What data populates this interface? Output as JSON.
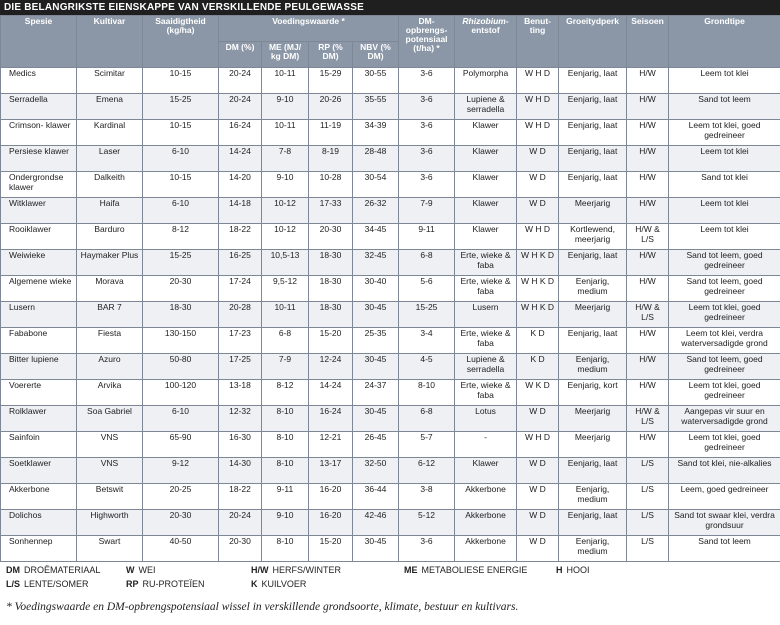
{
  "title": "DIE BELANGRIKSTE EIENSKAPPE VAN VERSKILLENDE PEULGEWASSE",
  "headers": {
    "spesie": "Spesie",
    "kultivar": "Kultivar",
    "saaidigtheid": "Saaidigtheid (kg/ha)",
    "voedingswaarde": "Voedingswaarde *",
    "dm": "DM (%)",
    "me": "ME (MJ/ kg DM)",
    "rp": "RP (% DM)",
    "nbv": "NBV (% DM)",
    "dm_potensiaal": "DM- opbrengs- potensiaal (t/ha) *",
    "rhizobium": "Rhizobium-",
    "rhizobium2": "entstof",
    "benutting": "Benut- ting",
    "groeityd": "Groeitydperk",
    "seisoen": "Seisoen",
    "grondtipe": "Grondtipe"
  },
  "rows": [
    {
      "spesie": "Medics",
      "kultivar": "Scimitar",
      "saai": "10-15",
      "dm": "20-24",
      "me": "10-11",
      "rp": "15-29",
      "nbv": "30-55",
      "pot": "3-6",
      "rhiz": "Polymorpha",
      "benut": "W H D",
      "groei": "Eenjarig, laat",
      "seis": "H/W",
      "grond": "Leem tot klei"
    },
    {
      "spesie": "Serradella",
      "kultivar": "Emena",
      "saai": "15-25",
      "dm": "20-24",
      "me": "9-10",
      "rp": "20-26",
      "nbv": "35-55",
      "pot": "3-6",
      "rhiz": "Lupiene & serradella",
      "benut": "W H D",
      "groei": "Eenjarig, laat",
      "seis": "H/W",
      "grond": "Sand tot leem"
    },
    {
      "spesie": "Crimson- klawer",
      "kultivar": "Kardinal",
      "saai": "10-15",
      "dm": "16-24",
      "me": "10-11",
      "rp": "11-19",
      "nbv": "34-39",
      "pot": "3-6",
      "rhiz": "Klawer",
      "benut": "W H D",
      "groei": "Eenjarig, laat",
      "seis": "H/W",
      "grond": "Leem tot klei, goed gedreineer"
    },
    {
      "spesie": "Persiese klawer",
      "kultivar": "Laser",
      "saai": "6-10",
      "dm": "14-24",
      "me": "7-8",
      "rp": "8-19",
      "nbv": "28-48",
      "pot": "3-6",
      "rhiz": "Klawer",
      "benut": "W D",
      "groei": "Eenjarig, laat",
      "seis": "H/W",
      "grond": "Leem tot klei"
    },
    {
      "spesie": "Ondergrondse klawer",
      "kultivar": "Dalkeith",
      "saai": "10-15",
      "dm": "14-20",
      "me": "9-10",
      "rp": "10-28",
      "nbv": "30-54",
      "pot": "3-6",
      "rhiz": "Klawer",
      "benut": "W D",
      "groei": "Eenjarig, laat",
      "seis": "H/W",
      "grond": "Sand tot klei"
    },
    {
      "spesie": "Witklawer",
      "kultivar": "Haifa",
      "saai": "6-10",
      "dm": "14-18",
      "me": "10-12",
      "rp": "17-33",
      "nbv": "26-32",
      "pot": "7-9",
      "rhiz": "Klawer",
      "benut": "W D",
      "groei": "Meerjarig",
      "seis": "H/W",
      "grond": "Leem tot klei"
    },
    {
      "spesie": "Rooiklawer",
      "kultivar": "Barduro",
      "saai": "8-12",
      "dm": "18-22",
      "me": "10-12",
      "rp": "20-30",
      "nbv": "34-45",
      "pot": "9-11",
      "rhiz": "Klawer",
      "benut": "W H D",
      "groei": "Kortlewend, meerjarig",
      "seis": "H/W & L/S",
      "grond": "Leem tot klei"
    },
    {
      "spesie": "Weiwieke",
      "kultivar": "Haymaker Plus",
      "saai": "15-25",
      "dm": "16-25",
      "me": "10,5-13",
      "rp": "18-30",
      "nbv": "32-45",
      "pot": "6-8",
      "rhiz": "Erte, wieke & faba",
      "benut": "W H K D",
      "groei": "Eenjarig, laat",
      "seis": "H/W",
      "grond": "Sand tot leem, goed gedreineer"
    },
    {
      "spesie": "Algemene wieke",
      "kultivar": "Morava",
      "saai": "20-30",
      "dm": "17-24",
      "me": "9,5-12",
      "rp": "18-30",
      "nbv": "30-40",
      "pot": "5-6",
      "rhiz": "Erte, wieke & faba",
      "benut": "W H K D",
      "groei": "Eenjarig, medium",
      "seis": "H/W",
      "grond": "Sand tot leem, goed gedreineer"
    },
    {
      "spesie": "Lusern",
      "kultivar": "BAR 7",
      "saai": "18-30",
      "dm": "20-28",
      "me": "10-11",
      "rp": "18-30",
      "nbv": "30-45",
      "pot": "15-25",
      "rhiz": "Lusern",
      "benut": "W H K D",
      "groei": "Meerjarig",
      "seis": "H/W & L/S",
      "grond": "Leem tot klei, goed gedreineer"
    },
    {
      "spesie": "Fababone",
      "kultivar": "Fiesta",
      "saai": "130-150",
      "dm": "17-23",
      "me": "6-8",
      "rp": "15-20",
      "nbv": "25-35",
      "pot": "3-4",
      "rhiz": "Erte, wieke & faba",
      "benut": "K D",
      "groei": "Eenjarig, laat",
      "seis": "H/W",
      "grond": "Leem tot klei, verdra waterversadigde grond"
    },
    {
      "spesie": "Bitter lupiene",
      "kultivar": "Azuro",
      "saai": "50-80",
      "dm": "17-25",
      "me": "7-9",
      "rp": "12-24",
      "nbv": "30-45",
      "pot": "4-5",
      "rhiz": "Lupiene & serradella",
      "benut": "K D",
      "groei": "Eenjarig, medium",
      "seis": "H/W",
      "grond": "Sand tot leem, goed gedreineer"
    },
    {
      "spesie": "Voererte",
      "kultivar": "Arvika",
      "saai": "100-120",
      "dm": "13-18",
      "me": "8-12",
      "rp": "14-24",
      "nbv": "24-37",
      "pot": "8-10",
      "rhiz": "Erte, wieke & faba",
      "benut": "W K D",
      "groei": "Eenjarig, kort",
      "seis": "H/W",
      "grond": "Leem tot klei, goed gedreineer"
    },
    {
      "spesie": "Rolklawer",
      "kultivar": "Soa Gabriel",
      "saai": "6-10",
      "dm": "12-32",
      "me": "8-10",
      "rp": "16-24",
      "nbv": "30-45",
      "pot": "6-8",
      "rhiz": "Lotus",
      "benut": "W D",
      "groei": "Meerjarig",
      "seis": "H/W & L/S",
      "grond": "Aangepas vir suur en waterversadigde grond"
    },
    {
      "spesie": "Sainfoin",
      "kultivar": "VNS",
      "saai": "65-90",
      "dm": "16-30",
      "me": "8-10",
      "rp": "12-21",
      "nbv": "26-45",
      "pot": "5-7",
      "rhiz": "-",
      "benut": "W H D",
      "groei": "Meerjarig",
      "seis": "H/W",
      "grond": "Leem tot klei, goed gedreineer"
    },
    {
      "spesie": "Soetklawer",
      "kultivar": "VNS",
      "saai": "9-12",
      "dm": "14-30",
      "me": "8-10",
      "rp": "13-17",
      "nbv": "32-50",
      "pot": "6-12",
      "rhiz": "Klawer",
      "benut": "W D",
      "groei": "Eenjarig, laat",
      "seis": "L/S",
      "grond": "Sand tot klei, nie-alkalies"
    },
    {
      "spesie": "Akkerbone",
      "kultivar": "Betswit",
      "saai": "20-25",
      "dm": "18-22",
      "me": "9-11",
      "rp": "16-20",
      "nbv": "36-44",
      "pot": "3-8",
      "rhiz": "Akkerbone",
      "benut": "W D",
      "groei": "Eenjarig, medium",
      "seis": "L/S",
      "grond": "Leem, goed gedreineer"
    },
    {
      "spesie": "Dolichos",
      "kultivar": "Highworth",
      "saai": "20-30",
      "dm": "20-24",
      "me": "9-10",
      "rp": "16-20",
      "nbv": "42-46",
      "pot": "5-12",
      "rhiz": "Akkerbone",
      "benut": "W D",
      "groei": "Eenjarig, laat",
      "seis": "L/S",
      "grond": "Sand tot swaar klei, verdra grondsuur"
    },
    {
      "spesie": "Sonhennep",
      "kultivar": "Swart",
      "saai": "40-50",
      "dm": "20-30",
      "me": "8-10",
      "rp": "15-20",
      "nbv": "30-45",
      "pot": "3-6",
      "rhiz": "Akkerbone",
      "benut": "W D",
      "groei": "Eenjarig, medium",
      "seis": "L/S",
      "grond": "Sand tot leem"
    }
  ],
  "legend": {
    "row1": [
      {
        "abbr": "DM",
        "text": "DROËMATERIAAL"
      },
      {
        "abbr": "W",
        "text": "WEI"
      },
      {
        "abbr": "H/W",
        "text": "HERFS/WINTER"
      },
      {
        "abbr": "ME",
        "text": "METABOLIESE ENERGIE"
      },
      {
        "abbr": "H",
        "text": "HOOI"
      }
    ],
    "row2": [
      {
        "abbr": "L/S",
        "text": "LENTE/SOMER"
      },
      {
        "abbr": "RP",
        "text": "RU-PROTEÏEN"
      },
      {
        "abbr": "K",
        "text": "KUILVOER"
      }
    ]
  },
  "footnote": "* Voedingswaarde en DM-opbrengspotensiaal wissel in verskillende grondsoorte, klimate, bestuur en kultivars."
}
